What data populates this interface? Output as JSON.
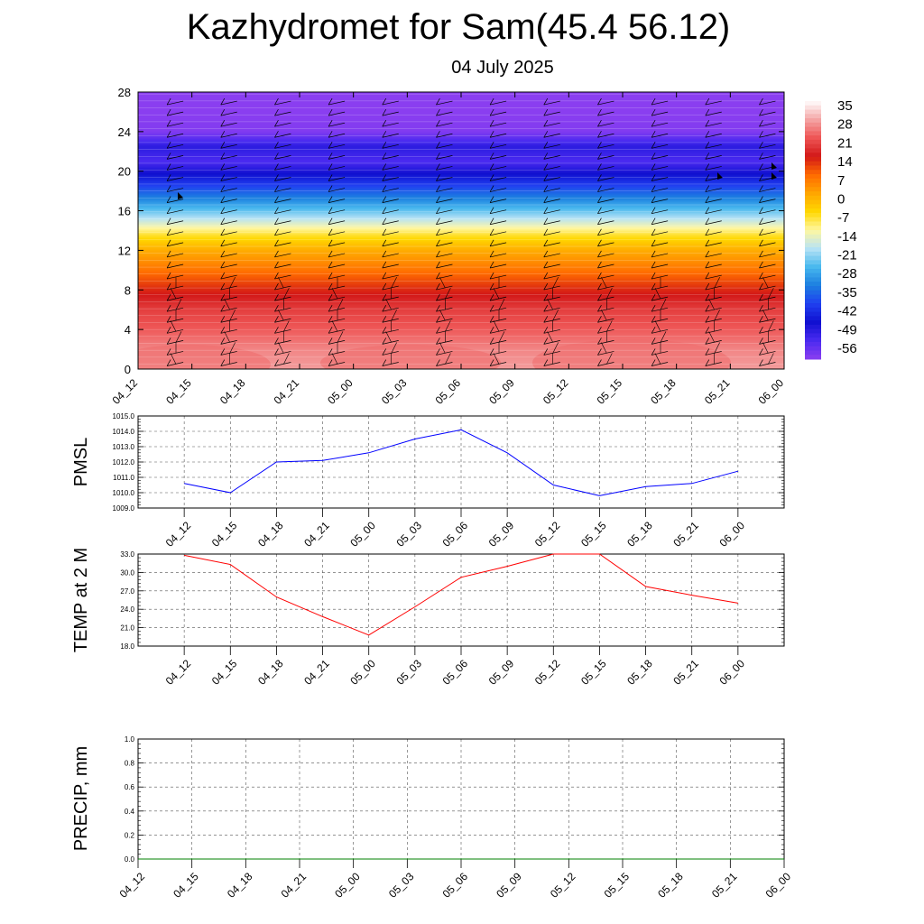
{
  "title": "Kazhydromet for Sam(45.4 56.12)",
  "date": "04 July 2025",
  "time_labels": [
    "04_12",
    "04_15",
    "04_18",
    "04_21",
    "05_00",
    "05_03",
    "05_06",
    "05_09",
    "05_12",
    "05_15",
    "05_18",
    "05_21",
    "06_00"
  ],
  "colors": {
    "pmsl_line": "#0000ff",
    "temp_line": "#ff0000",
    "precip_line": "#008000"
  },
  "chart_data": [
    {
      "type": "heatmap",
      "name": "temperature-wind-cross-section",
      "x": [
        "04_12",
        "04_15",
        "04_18",
        "04_21",
        "05_00",
        "05_03",
        "05_06",
        "05_09",
        "05_12",
        "05_15",
        "05_18",
        "05_21",
        "06_00"
      ],
      "ylim": [
        0,
        28
      ],
      "yticks": [
        0,
        4,
        8,
        12,
        16,
        20,
        24,
        28
      ],
      "colorbar_labels": [
        "35",
        "28",
        "21",
        "14",
        "7",
        "0",
        "-7",
        "-14",
        "-21",
        "-28",
        "-35",
        "-42",
        "-49",
        "-56"
      ],
      "colormap": [
        "#ffffff",
        "#f4a5a5",
        "#ee5555",
        "#d21818",
        "#ff6a00",
        "#ffa500",
        "#ffd700",
        "#fff7a0",
        "#b8e3f5",
        "#48b8ee",
        "#1c7fe0",
        "#2040f0",
        "#1010d0",
        "#4a2af0",
        "#8a3ef0"
      ],
      "vertical_profile": [
        {
          "h": 0,
          "t": 30
        },
        {
          "h": 2,
          "t": 28
        },
        {
          "h": 4,
          "t": 24
        },
        {
          "h": 6,
          "t": 21
        },
        {
          "h": 8,
          "t": 15
        },
        {
          "h": 10,
          "t": 8
        },
        {
          "h": 12,
          "t": 1
        },
        {
          "h": 13.5,
          "t": -7
        },
        {
          "h": 15,
          "t": -18
        },
        {
          "h": 17,
          "t": -32
        },
        {
          "h": 19,
          "t": -44
        },
        {
          "h": 21,
          "t": -56
        },
        {
          "h": 22.5,
          "t": -52
        },
        {
          "h": 24,
          "t": -62
        },
        {
          "h": 28,
          "t": -64
        }
      ]
    },
    {
      "type": "line",
      "ylabel": "PMSL",
      "x": [
        "04_12",
        "04_15",
        "04_18",
        "04_21",
        "05_00",
        "05_03",
        "05_06",
        "05_09",
        "05_12",
        "05_15",
        "05_18",
        "05_21",
        "06_00"
      ],
      "series": [
        {
          "values": [
            1010.6,
            1010.0,
            1012.0,
            1012.1,
            1012.6,
            1013.5,
            1014.1,
            1012.6,
            1010.5,
            1009.8,
            1010.4,
            1010.6,
            1011.4
          ]
        }
      ],
      "ylim": [
        1009.0,
        1015.0
      ],
      "ytick_labels": [
        "1009.0",
        "1010.0",
        "1011.0",
        "1012.0",
        "1013.0",
        "1014.0",
        "1015.0"
      ],
      "grid": true
    },
    {
      "type": "line",
      "ylabel": "TEMP at 2 M",
      "x": [
        "04_12",
        "04_15",
        "04_18",
        "04_21",
        "05_00",
        "05_03",
        "05_06",
        "05_09",
        "05_12",
        "05_15",
        "05_18",
        "05_21",
        "06_00"
      ],
      "series": [
        {
          "values": [
            32.8,
            31.3,
            26.0,
            22.8,
            19.8,
            24.4,
            29.2,
            31.0,
            33.0,
            33.0,
            27.7,
            26.3,
            25.0
          ]
        }
      ],
      "ylim": [
        18.0,
        33.0
      ],
      "ytick_labels": [
        "18.0",
        "21.0",
        "24.0",
        "27.0",
        "30.0",
        "33.0"
      ],
      "grid": true
    },
    {
      "type": "line",
      "ylabel": "PRECIP, mm",
      "x": [
        "04_12",
        "04_15",
        "04_18",
        "04_21",
        "05_00",
        "05_03",
        "05_06",
        "05_09",
        "05_12",
        "05_15",
        "05_18",
        "05_21",
        "06_00"
      ],
      "series": [
        {
          "values": [
            0,
            0,
            0,
            0,
            0,
            0,
            0,
            0,
            0,
            0,
            0,
            0,
            0
          ]
        }
      ],
      "ylim": [
        0.0,
        1.0
      ],
      "ytick_labels": [
        "0.0",
        "0.2",
        "0.4",
        "0.6",
        "0.8",
        "1.0"
      ],
      "grid": true
    }
  ]
}
